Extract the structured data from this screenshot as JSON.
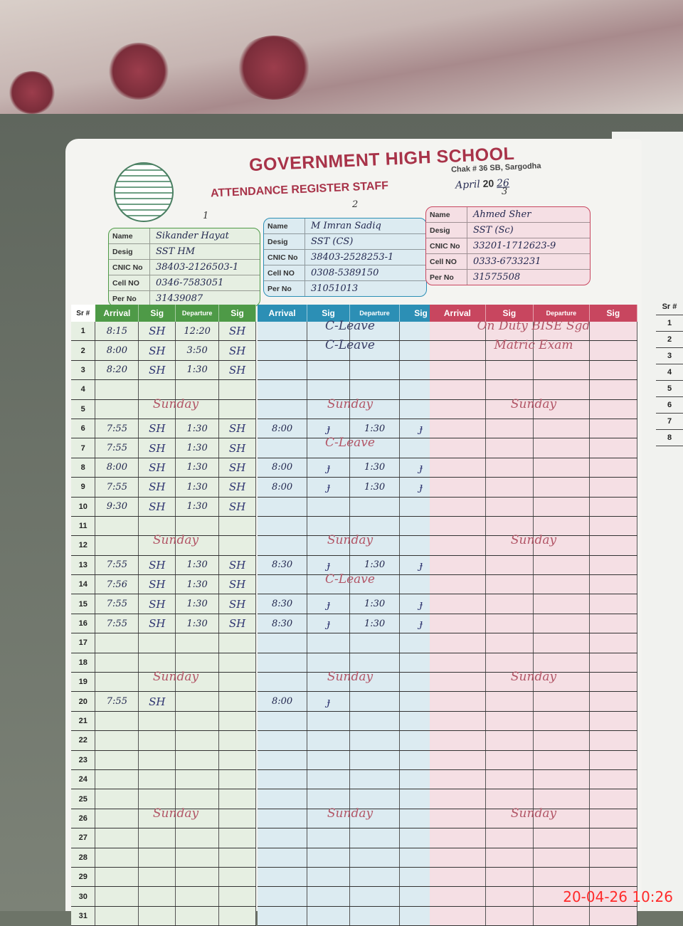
{
  "header": {
    "school": "GOVERNMENT HIGH SCHOOL",
    "address": "Chak # 36 SB, Sargodha",
    "register": "ATTENDANCE REGISTER STAFF",
    "month_handwritten": "April",
    "year_prefix": "20",
    "year_handwritten": "26"
  },
  "columns": {
    "sr": "Sr #",
    "arrival": "Arrival",
    "sig": "Sig",
    "departure": "Departure"
  },
  "card_labels": {
    "name": "Name",
    "desig": "Desig",
    "cnic": "CNIC No",
    "cell": "Cell NO",
    "per": "Per No"
  },
  "colors": {
    "green": "#4e9a47",
    "blue": "#2c8fb5",
    "pink": "#c8465f",
    "green_bg": "#e6efe2",
    "blue_bg": "#dcebf1",
    "pink_bg": "#f5dfe4"
  },
  "staff": [
    {
      "number": "1",
      "name": "Sikander Hayat",
      "desig": "SST HM",
      "cnic": "38403-2126503-1",
      "cell": "0346-7583051",
      "per_no": "31439087",
      "records": [
        {
          "day": 1,
          "arrival": "8:15",
          "departure": "12:20"
        },
        {
          "day": 2,
          "arrival": "8:00",
          "departure": "3:50"
        },
        {
          "day": 3,
          "arrival": "8:20",
          "departure": "1:30"
        },
        {
          "day": 6,
          "arrival": "7:55",
          "departure": "1:30"
        },
        {
          "day": 7,
          "arrival": "7:55",
          "departure": "1:30"
        },
        {
          "day": 8,
          "arrival": "8:00",
          "departure": "1:30"
        },
        {
          "day": 9,
          "arrival": "7:55",
          "departure": "1:30"
        },
        {
          "day": 10,
          "arrival": "9:30",
          "departure": "1:30"
        },
        {
          "day": 13,
          "arrival": "7:55",
          "departure": "1:30"
        },
        {
          "day": 14,
          "arrival": "7:56",
          "departure": "1:30"
        },
        {
          "day": 15,
          "arrival": "7:55",
          "departure": "1:30"
        },
        {
          "day": 16,
          "arrival": "7:55",
          "departure": "1:30"
        },
        {
          "day": 20,
          "arrival": "7:55",
          "departure": ""
        }
      ],
      "sig_mark": "SH",
      "notes": [
        {
          "day": 5,
          "text": "Sunday",
          "kind": "sunday"
        },
        {
          "day": 12,
          "text": "Sunday",
          "kind": "sunday"
        },
        {
          "day": 19,
          "text": "Sunday",
          "kind": "sunday"
        },
        {
          "day": 26,
          "text": "Sunday",
          "kind": "sunday"
        }
      ]
    },
    {
      "number": "2",
      "name": "M Imran Sadiq",
      "desig": "SST (CS)",
      "cnic": "38403-2528253-1",
      "cell": "0308-5389150",
      "per_no": "31051013",
      "records": [
        {
          "day": 6,
          "arrival": "8:00",
          "departure": "1:30"
        },
        {
          "day": 8,
          "arrival": "8:00",
          "departure": "1:30"
        },
        {
          "day": 9,
          "arrival": "8:00",
          "departure": "1:30"
        },
        {
          "day": 13,
          "arrival": "8:30",
          "departure": "1:30"
        },
        {
          "day": 15,
          "arrival": "8:30",
          "departure": "1:30"
        },
        {
          "day": 16,
          "arrival": "8:30",
          "departure": "1:30"
        },
        {
          "day": 20,
          "arrival": "8:00",
          "departure": ""
        }
      ],
      "sig_mark": "ɟ",
      "notes": [
        {
          "day": 1,
          "text": "C-Leave",
          "kind": "leave"
        },
        {
          "day": 2,
          "text": "C-Leave",
          "kind": "leave"
        },
        {
          "day": 5,
          "text": "Sunday",
          "kind": "sunday"
        },
        {
          "day": 7,
          "text": "C-Leave",
          "kind": "sunday"
        },
        {
          "day": 12,
          "text": "Sunday",
          "kind": "sunday"
        },
        {
          "day": 14,
          "text": "C-Leave",
          "kind": "sunday"
        },
        {
          "day": 19,
          "text": "Sunday",
          "kind": "sunday"
        },
        {
          "day": 26,
          "text": "Sunday",
          "kind": "sunday"
        }
      ]
    },
    {
      "number": "3",
      "name": "Ahmed Sher",
      "desig": "SST (Sc)",
      "cnic": "33201-1712623-9",
      "cell": "0333-6733231",
      "per_no": "31575508",
      "records": [],
      "sig_mark": "",
      "notes": [
        {
          "day": 1,
          "text": "On Duty BISE Sgd",
          "kind": "sunday"
        },
        {
          "day": 2,
          "text": "Matric Exam",
          "kind": "sunday"
        },
        {
          "day": 5,
          "text": "Sunday",
          "kind": "sunday"
        },
        {
          "day": 12,
          "text": "Sunday",
          "kind": "sunday"
        },
        {
          "day": 19,
          "text": "Sunday",
          "kind": "sunday"
        },
        {
          "day": 26,
          "text": "Sunday",
          "kind": "sunday"
        }
      ]
    }
  ],
  "days": 31,
  "right_page_sr": [
    "Sr #",
    "1",
    "2",
    "3",
    "4",
    "5",
    "6",
    "7",
    "8"
  ],
  "camera_timestamp": "20-04-26  10:26"
}
